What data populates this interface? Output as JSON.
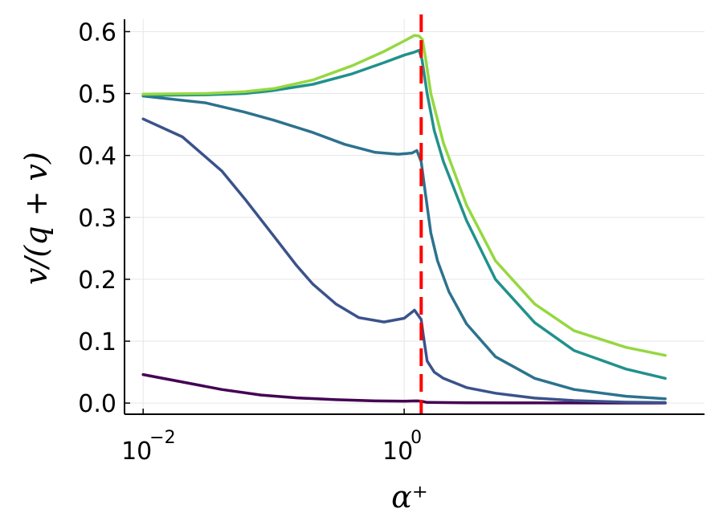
{
  "chart_data": {
    "type": "line",
    "x_scale": "log",
    "xlim": [
      0.0072,
      200
    ],
    "ylim": [
      -0.018,
      0.62
    ],
    "x_tick_values": [
      0.01,
      1
    ],
    "x_ticks": [
      {
        "base": "10",
        "exp": "−2"
      },
      {
        "base": "10",
        "exp": "0"
      }
    ],
    "y_ticks": [
      0.0,
      0.1,
      0.2,
      0.3,
      0.4,
      0.5,
      0.6
    ],
    "y_tick_labels": [
      "0.0",
      "0.1",
      "0.2",
      "0.3",
      "0.4",
      "0.5",
      "0.6"
    ],
    "xlabel": "α⁺",
    "ylabel": "v/(q + v)",
    "grid": true,
    "reference_line": {
      "x": 1.35,
      "color": "#ff0000",
      "style": "dashed"
    },
    "series": [
      {
        "color": "#440154",
        "points": [
          [
            0.01,
            0.046
          ],
          [
            0.02,
            0.034
          ],
          [
            0.04,
            0.022
          ],
          [
            0.08,
            0.013
          ],
          [
            0.15,
            0.0085
          ],
          [
            0.3,
            0.0055
          ],
          [
            0.6,
            0.0035
          ],
          [
            1.0,
            0.003
          ],
          [
            1.25,
            0.0035
          ],
          [
            1.35,
            0.003
          ],
          [
            1.5,
            0.001
          ],
          [
            3,
            0.0005
          ],
          [
            10,
            0.0003
          ],
          [
            50,
            0.0001
          ],
          [
            100,
            0.0001
          ]
        ]
      },
      {
        "color": "#3b528b",
        "points": [
          [
            0.01,
            0.459
          ],
          [
            0.02,
            0.43
          ],
          [
            0.04,
            0.375
          ],
          [
            0.06,
            0.33
          ],
          [
            0.1,
            0.27
          ],
          [
            0.15,
            0.222
          ],
          [
            0.2,
            0.192
          ],
          [
            0.3,
            0.16
          ],
          [
            0.45,
            0.138
          ],
          [
            0.7,
            0.131
          ],
          [
            1.0,
            0.137
          ],
          [
            1.2,
            0.15
          ],
          [
            1.35,
            0.135
          ],
          [
            1.4,
            0.11
          ],
          [
            1.5,
            0.068
          ],
          [
            1.7,
            0.05
          ],
          [
            2,
            0.04
          ],
          [
            3,
            0.025
          ],
          [
            5,
            0.016
          ],
          [
            10,
            0.008
          ],
          [
            20,
            0.004
          ],
          [
            50,
            0.0015
          ],
          [
            100,
            0.0008
          ]
        ]
      },
      {
        "color": "#2c728e",
        "points": [
          [
            0.01,
            0.496
          ],
          [
            0.03,
            0.485
          ],
          [
            0.06,
            0.47
          ],
          [
            0.1,
            0.457
          ],
          [
            0.2,
            0.437
          ],
          [
            0.35,
            0.418
          ],
          [
            0.6,
            0.405
          ],
          [
            0.9,
            0.402
          ],
          [
            1.15,
            0.404
          ],
          [
            1.25,
            0.408
          ],
          [
            1.35,
            0.39
          ],
          [
            1.45,
            0.34
          ],
          [
            1.6,
            0.275
          ],
          [
            1.8,
            0.23
          ],
          [
            2.2,
            0.18
          ],
          [
            3,
            0.128
          ],
          [
            5,
            0.075
          ],
          [
            10,
            0.04
          ],
          [
            20,
            0.022
          ],
          [
            50,
            0.011
          ],
          [
            100,
            0.007
          ]
        ]
      },
      {
        "color": "#21918c",
        "points": [
          [
            0.01,
            0.497
          ],
          [
            0.03,
            0.498
          ],
          [
            0.06,
            0.5
          ],
          [
            0.1,
            0.505
          ],
          [
            0.2,
            0.515
          ],
          [
            0.4,
            0.532
          ],
          [
            0.7,
            0.55
          ],
          [
            1.0,
            0.562
          ],
          [
            1.2,
            0.567
          ],
          [
            1.3,
            0.57
          ],
          [
            1.37,
            0.555
          ],
          [
            1.5,
            0.5
          ],
          [
            1.7,
            0.44
          ],
          [
            2,
            0.39
          ],
          [
            3,
            0.295
          ],
          [
            5,
            0.2
          ],
          [
            10,
            0.13
          ],
          [
            20,
            0.085
          ],
          [
            50,
            0.055
          ],
          [
            100,
            0.04
          ]
        ]
      },
      {
        "color": "#95d840",
        "points": [
          [
            0.01,
            0.499
          ],
          [
            0.03,
            0.5
          ],
          [
            0.06,
            0.503
          ],
          [
            0.1,
            0.508
          ],
          [
            0.2,
            0.522
          ],
          [
            0.4,
            0.545
          ],
          [
            0.7,
            0.568
          ],
          [
            1.0,
            0.585
          ],
          [
            1.2,
            0.594
          ],
          [
            1.3,
            0.593
          ],
          [
            1.38,
            0.587
          ],
          [
            1.45,
            0.56
          ],
          [
            1.6,
            0.5
          ],
          [
            2,
            0.42
          ],
          [
            3,
            0.32
          ],
          [
            5,
            0.23
          ],
          [
            10,
            0.16
          ],
          [
            20,
            0.117
          ],
          [
            50,
            0.09
          ],
          [
            100,
            0.077
          ]
        ]
      }
    ]
  }
}
